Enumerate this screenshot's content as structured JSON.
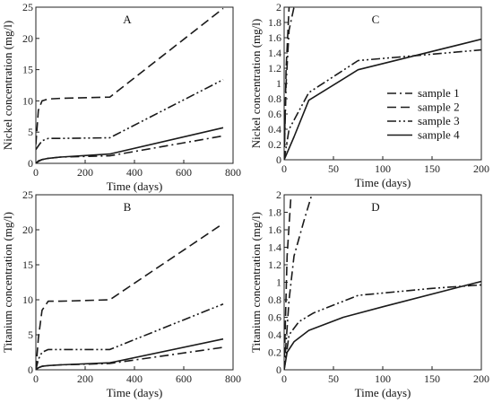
{
  "chart_data": [
    {
      "type": "line",
      "title": "A",
      "xlabel": "Time (days)",
      "ylabel": "Nickel concentration (mg/l)",
      "xlim": [
        0,
        800
      ],
      "ylim": [
        0,
        25
      ],
      "xticks": [
        0,
        200,
        400,
        600,
        800
      ],
      "yticks": [
        0,
        5,
        10,
        15,
        20,
        25
      ],
      "series": [
        {
          "name": "sample 1",
          "dash": "dashdot",
          "x": [
            0,
            10,
            25,
            50,
            100,
            300,
            760
          ],
          "y": [
            0,
            0.4,
            0.6,
            0.8,
            1.0,
            1.2,
            4.4
          ]
        },
        {
          "name": "sample 2",
          "dash": "dash",
          "x": [
            0,
            10,
            25,
            50,
            100,
            300,
            760
          ],
          "y": [
            3.0,
            8.5,
            10.0,
            10.3,
            10.4,
            10.6,
            24.8
          ]
        },
        {
          "name": "sample 3",
          "dash": "dashdotdot",
          "x": [
            0,
            10,
            25,
            50,
            100,
            300,
            760
          ],
          "y": [
            2.2,
            2.8,
            3.6,
            4.0,
            4.0,
            4.1,
            13.4
          ]
        },
        {
          "name": "sample 4",
          "dash": "solid",
          "x": [
            0,
            10,
            25,
            50,
            100,
            300,
            760
          ],
          "y": [
            0,
            0.3,
            0.6,
            0.8,
            1.0,
            1.5,
            5.7
          ]
        }
      ]
    },
    {
      "type": "line",
      "title": "C",
      "xlabel": "Time (days)",
      "ylabel": "Nickel concentration (mg/l)",
      "xlim": [
        0,
        200
      ],
      "ylim": [
        0,
        2
      ],
      "xticks": [
        0,
        50,
        100,
        150,
        200
      ],
      "yticks": [
        0,
        0.2,
        0.4,
        0.6,
        0.8,
        1,
        1.2,
        1.4,
        1.6,
        1.8,
        2
      ],
      "legend": "right",
      "series": [
        {
          "name": "sample 1",
          "dash": "dashdot",
          "x": [
            0,
            2,
            5,
            10
          ],
          "y": [
            0,
            1.0,
            1.7,
            2.0
          ]
        },
        {
          "name": "sample 2",
          "dash": "dash",
          "x": [
            0,
            2,
            5
          ],
          "y": [
            0,
            1.2,
            2.0
          ]
        },
        {
          "name": "sample 3",
          "dash": "dashdotdot",
          "x": [
            0,
            5,
            25,
            75,
            200
          ],
          "y": [
            0,
            0.4,
            0.88,
            1.3,
            1.44
          ]
        },
        {
          "name": "sample 4",
          "dash": "solid",
          "x": [
            0,
            10,
            25,
            75,
            200
          ],
          "y": [
            0,
            0.3,
            0.78,
            1.18,
            1.58
          ]
        }
      ]
    },
    {
      "type": "line",
      "title": "B",
      "xlabel": "Time (days)",
      "ylabel": "Titanium concentration (mg/l)",
      "xlim": [
        0,
        800
      ],
      "ylim": [
        0,
        25
      ],
      "xticks": [
        0,
        200,
        400,
        600,
        800
      ],
      "yticks": [
        0,
        5,
        10,
        15,
        20,
        25
      ],
      "series": [
        {
          "name": "sample 1",
          "dash": "dashdot",
          "x": [
            0,
            10,
            25,
            50,
            100,
            300,
            760
          ],
          "y": [
            0,
            0.3,
            0.5,
            0.6,
            0.7,
            0.9,
            3.2
          ]
        },
        {
          "name": "sample 2",
          "dash": "dash",
          "x": [
            0,
            10,
            25,
            50,
            100,
            300,
            760
          ],
          "y": [
            0,
            4.5,
            8.5,
            9.8,
            9.8,
            10.0,
            20.9
          ]
        },
        {
          "name": "sample 3",
          "dash": "dashdotdot",
          "x": [
            0,
            10,
            25,
            50,
            100,
            300,
            760
          ],
          "y": [
            0,
            1.5,
            2.5,
            2.9,
            2.9,
            2.9,
            9.4
          ]
        },
        {
          "name": "sample 4",
          "dash": "solid",
          "x": [
            0,
            10,
            25,
            50,
            100,
            300,
            760
          ],
          "y": [
            0,
            0.3,
            0.5,
            0.6,
            0.7,
            1.0,
            4.4
          ]
        }
      ]
    },
    {
      "type": "line",
      "title": "D",
      "xlabel": "Time (days)",
      "ylabel": "Titanium concentration (mg/l)",
      "xlim": [
        0,
        200
      ],
      "ylim": [
        0,
        2
      ],
      "xticks": [
        0,
        50,
        100,
        150,
        200
      ],
      "yticks": [
        0,
        0.2,
        0.4,
        0.6,
        0.8,
        1,
        1.2,
        1.4,
        1.6,
        1.8,
        2
      ],
      "series": [
        {
          "name": "sample 1",
          "dash": "dashdot",
          "x": [
            0,
            5,
            10,
            20,
            28
          ],
          "y": [
            0,
            0.8,
            1.3,
            1.7,
            2.0
          ]
        },
        {
          "name": "sample 2",
          "dash": "dash",
          "x": [
            0,
            3,
            7
          ],
          "y": [
            0,
            1.3,
            2.0
          ]
        },
        {
          "name": "sample 3",
          "dash": "dashdotdot",
          "x": [
            0,
            5,
            15,
            30,
            75,
            150,
            200
          ],
          "y": [
            0,
            0.4,
            0.55,
            0.65,
            0.85,
            0.93,
            0.97
          ]
        },
        {
          "name": "sample 4",
          "dash": "solid",
          "x": [
            0,
            3,
            10,
            25,
            60,
            100,
            200
          ],
          "y": [
            0,
            0.2,
            0.32,
            0.45,
            0.6,
            0.72,
            1.01
          ]
        }
      ]
    }
  ]
}
